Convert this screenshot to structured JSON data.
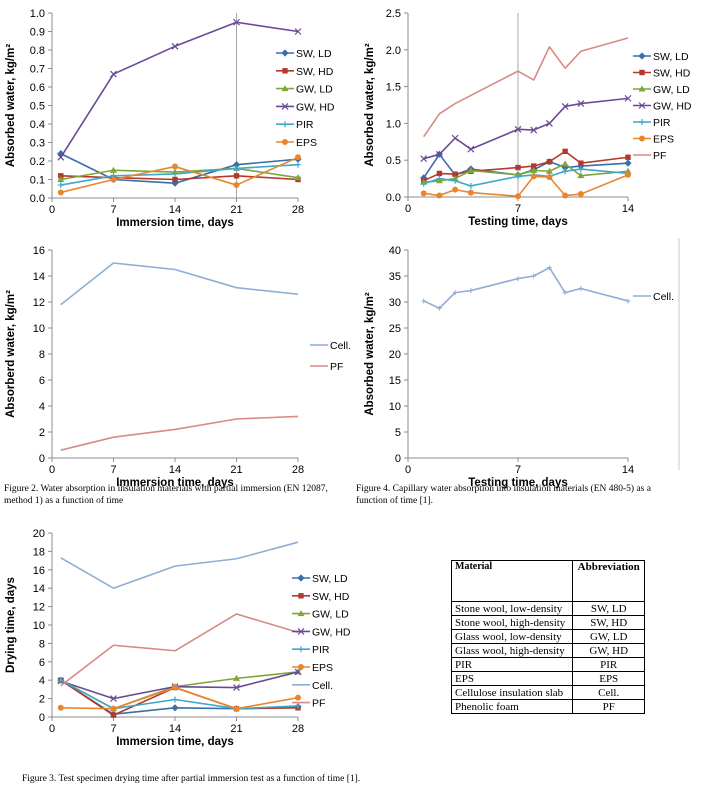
{
  "colors": {
    "SW, LD": "#3b6ea8",
    "SW, HD": "#b03a2e",
    "GW, LD": "#7fa63a",
    "GW, HD": "#6b4a95",
    "PIR": "#3fa7c9",
    "EPS": "#e8862f",
    "Cell.": "#8eaed6",
    "PF": "#d88a84"
  },
  "captions": {
    "fig2": "Figure 2. Water absorption in insulation materials with partial immersion (EN 12087, method 1) as a function of time",
    "fig4": "Figure 4. Capillary water absorption into insulation materials (EN 480-5) as a function of time [1].",
    "fig3": "Figure 3. Test specimen drying time after partial immersion test as a function of time [1]."
  },
  "table": {
    "headers": [
      "Material",
      "Abbreviation"
    ],
    "rows": [
      [
        "Stone wool, low-density",
        "SW, LD"
      ],
      [
        "Stone wool, high-density",
        "SW, HD"
      ],
      [
        "Glass wool, low-density",
        "GW, LD"
      ],
      [
        "Glass wool, high-density",
        "GW, HD"
      ],
      [
        "PIR",
        "PIR"
      ],
      [
        "EPS",
        "EPS"
      ],
      [
        "Cellulose insulation slab",
        "Cell."
      ],
      [
        "Phenolic foam",
        "PF"
      ]
    ]
  },
  "chart_data": [
    {
      "id": "fig2a",
      "type": "line",
      "xlabel": "Immersion time, days",
      "ylabel": "Absorbed water, kg/m²",
      "xlim": [
        0,
        28
      ],
      "ylim": [
        0,
        1.0
      ],
      "xticks": [
        "0",
        "7",
        "14",
        "21",
        "28"
      ],
      "yticks": [
        "0.0",
        "0.1",
        "0.2",
        "0.3",
        "0.4",
        "0.5",
        "0.6",
        "0.7",
        "0.8",
        "0.9",
        "1.0"
      ],
      "series": [
        {
          "name": "SW, LD",
          "x": [
            1,
            7,
            14,
            21,
            28
          ],
          "y": [
            0.24,
            0.1,
            0.08,
            0.18,
            0.21
          ]
        },
        {
          "name": "SW, HD",
          "x": [
            1,
            7,
            14,
            21,
            28
          ],
          "y": [
            0.12,
            0.11,
            0.1,
            0.12,
            0.1
          ]
        },
        {
          "name": "GW, LD",
          "x": [
            1,
            7,
            14,
            21,
            28
          ],
          "y": [
            0.1,
            0.15,
            0.14,
            0.16,
            0.11
          ]
        },
        {
          "name": "GW, HD",
          "x": [
            1,
            7,
            14,
            21,
            28
          ],
          "y": [
            0.22,
            0.67,
            0.82,
            0.95,
            0.9
          ]
        },
        {
          "name": "PIR",
          "x": [
            1,
            7,
            14,
            21,
            28
          ],
          "y": [
            0.07,
            0.12,
            0.13,
            0.16,
            0.18
          ]
        },
        {
          "name": "EPS",
          "x": [
            1,
            7,
            14,
            21,
            28
          ],
          "y": [
            0.03,
            0.1,
            0.17,
            0.07,
            0.22
          ]
        }
      ]
    },
    {
      "id": "fig2b",
      "type": "line",
      "xlabel": "Immersion time, days",
      "ylabel": "Absorberd water, kg/m²",
      "xlim": [
        0,
        28
      ],
      "ylim": [
        0,
        16
      ],
      "xticks": [
        "0",
        "7",
        "14",
        "21",
        "28"
      ],
      "yticks": [
        "0",
        "2",
        "4",
        "6",
        "8",
        "10",
        "12",
        "14",
        "16"
      ],
      "series": [
        {
          "name": "Cell.",
          "x": [
            1,
            7,
            14,
            21,
            28
          ],
          "y": [
            11.8,
            15.0,
            14.5,
            13.1,
            12.6
          ]
        },
        {
          "name": "PF",
          "x": [
            1,
            7,
            14,
            21,
            28
          ],
          "y": [
            0.6,
            1.6,
            2.2,
            3.0,
            3.2
          ]
        }
      ]
    },
    {
      "id": "fig4a",
      "type": "line",
      "xlabel": "Testing time, days",
      "ylabel": "Absorbed water, kg/m²",
      "xlim": [
        0,
        14
      ],
      "ylim": [
        0,
        2.5
      ],
      "xticks": [
        "0",
        "7",
        "14"
      ],
      "yticks": [
        "0.0",
        "0.5",
        "1.0",
        "1.5",
        "2.0",
        "2.5"
      ],
      "series": [
        {
          "name": "SW, LD",
          "x": [
            1,
            2,
            3,
            4,
            7,
            8,
            9,
            10,
            11,
            14
          ],
          "y": [
            0.26,
            0.58,
            0.3,
            0.38,
            0.3,
            0.37,
            0.48,
            0.4,
            0.42,
            0.46
          ]
        },
        {
          "name": "SW, HD",
          "x": [
            1,
            2,
            3,
            4,
            7,
            8,
            9,
            10,
            11,
            14
          ],
          "y": [
            0.22,
            0.32,
            0.31,
            0.35,
            0.4,
            0.42,
            0.48,
            0.62,
            0.46,
            0.54
          ]
        },
        {
          "name": "GW, LD",
          "x": [
            1,
            2,
            3,
            4,
            7,
            8,
            9,
            10,
            11,
            14
          ],
          "y": [
            0.2,
            0.22,
            0.25,
            0.36,
            0.3,
            0.36,
            0.35,
            0.45,
            0.29,
            0.35
          ]
        },
        {
          "name": "GW, HD",
          "x": [
            1,
            2,
            3,
            4,
            7,
            8,
            9,
            10,
            11,
            14
          ],
          "y": [
            0.52,
            0.58,
            0.8,
            0.65,
            0.92,
            0.91,
            1.0,
            1.23,
            1.27,
            1.34
          ]
        },
        {
          "name": "PIR",
          "x": [
            1,
            2,
            3,
            4,
            7,
            8,
            9,
            10,
            11,
            14
          ],
          "y": [
            0.18,
            0.25,
            0.22,
            0.15,
            0.28,
            0.3,
            0.28,
            0.35,
            0.38,
            0.32
          ]
        },
        {
          "name": "EPS",
          "x": [
            1,
            2,
            3,
            4,
            7,
            8,
            9,
            10,
            11,
            14
          ],
          "y": [
            0.05,
            0.02,
            0.1,
            0.06,
            0.01,
            0.28,
            0.27,
            0.02,
            0.04,
            0.3
          ]
        },
        {
          "name": "PF",
          "x": [
            1,
            2,
            3,
            4,
            7,
            8,
            9,
            10,
            11,
            14
          ],
          "y": [
            0.82,
            1.13,
            1.27,
            1.38,
            1.71,
            1.59,
            2.04,
            1.75,
            1.98,
            2.16
          ]
        }
      ]
    },
    {
      "id": "fig4b",
      "type": "line",
      "xlabel": "Testing time, days",
      "ylabel": "Absorbed water, kg/m²",
      "xlim": [
        0,
        14
      ],
      "ylim": [
        0,
        40
      ],
      "xticks": [
        "0",
        "7",
        "14"
      ],
      "yticks": [
        "0",
        "5",
        "10",
        "15",
        "20",
        "25",
        "30",
        "35",
        "40"
      ],
      "series": [
        {
          "name": "Cell.",
          "x": [
            1,
            2,
            3,
            4,
            7,
            8,
            9,
            10,
            11,
            14
          ],
          "y": [
            30.2,
            28.8,
            31.8,
            32.2,
            34.5,
            35.0,
            36.6,
            31.8,
            32.6,
            30.2
          ]
        }
      ]
    },
    {
      "id": "fig3",
      "type": "line",
      "xlabel": "Immersion time, days",
      "ylabel": "Drying time, days",
      "xlim": [
        0,
        28
      ],
      "ylim": [
        0,
        20
      ],
      "xticks": [
        "0",
        "7",
        "14",
        "21",
        "28"
      ],
      "yticks": [
        "0",
        "2",
        "4",
        "6",
        "8",
        "10",
        "12",
        "14",
        "16",
        "18",
        "20"
      ],
      "series": [
        {
          "name": "SW, LD",
          "x": [
            1,
            7,
            14,
            21,
            28
          ],
          "y": [
            4.0,
            0.3,
            1.0,
            0.9,
            1.1
          ]
        },
        {
          "name": "SW, HD",
          "x": [
            1,
            7,
            14,
            21,
            28
          ],
          "y": [
            4.0,
            0.2,
            3.2,
            0.9,
            1.0
          ]
        },
        {
          "name": "GW, LD",
          "x": [
            1,
            7,
            14,
            21,
            28
          ],
          "y": [
            4.0,
            0.9,
            3.3,
            4.2,
            4.9
          ]
        },
        {
          "name": "GW, HD",
          "x": [
            1,
            7,
            14,
            21,
            28
          ],
          "y": [
            3.9,
            2.0,
            3.3,
            3.2,
            4.9
          ]
        },
        {
          "name": "PIR",
          "x": [
            1,
            7,
            14,
            21,
            28
          ],
          "y": [
            4.0,
            0.9,
            1.9,
            0.9,
            1.2
          ]
        },
        {
          "name": "EPS",
          "x": [
            1,
            7,
            14,
            21,
            28
          ],
          "y": [
            1.0,
            0.9,
            3.2,
            0.9,
            2.1
          ]
        },
        {
          "name": "Cell.",
          "x": [
            1,
            7,
            14,
            21,
            28
          ],
          "y": [
            17.3,
            14.0,
            16.4,
            17.2,
            19.0
          ]
        },
        {
          "name": "PF",
          "x": [
            1,
            7,
            14,
            21,
            28
          ],
          "y": [
            3.4,
            7.8,
            7.2,
            11.2,
            9.2
          ]
        }
      ]
    }
  ]
}
